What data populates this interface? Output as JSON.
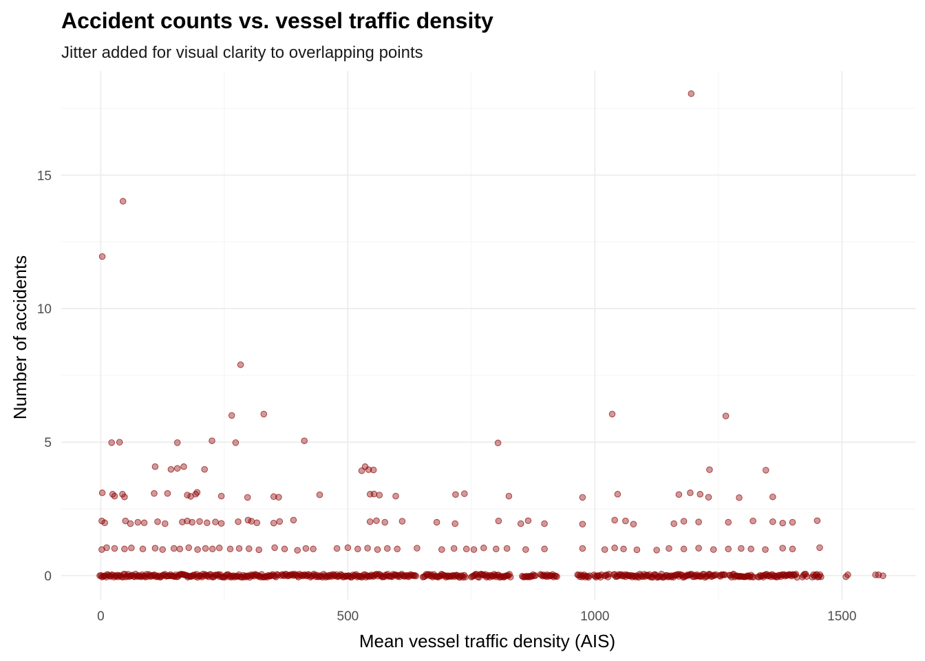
{
  "chart_data": {
    "type": "scatter",
    "title": "Accident counts vs. vessel traffic density",
    "subtitle": "Jitter added for visual clarity to overlapping points",
    "xlabel": "Mean vessel traffic density (AIS)",
    "ylabel": "Number of accidents",
    "xlim": [
      -80,
      1650
    ],
    "ylim": [
      -0.9,
      18.9
    ],
    "xticks": [
      0,
      500,
      1000,
      1500
    ],
    "xtick_labels": [
      "0",
      "500",
      "1000",
      "1500"
    ],
    "yticks": [
      0,
      5,
      10,
      15
    ],
    "ytick_labels": [
      "0",
      "5",
      "10",
      "15"
    ],
    "grid": true,
    "point_color": "#8b0000",
    "point_opacity": 0.4,
    "points": [
      [
        1195,
        18.05
      ],
      [
        45,
        14.02
      ],
      [
        3,
        11.95
      ],
      [
        283,
        7.9
      ],
      [
        1035,
        6.05
      ],
      [
        330,
        6.05
      ],
      [
        265,
        6.0
      ],
      [
        1265,
        5.98
      ],
      [
        225,
        5.05
      ],
      [
        412,
        5.05
      ],
      [
        22,
        4.98
      ],
      [
        38,
        5.0
      ],
      [
        155,
        4.98
      ],
      [
        273,
        4.98
      ],
      [
        804,
        4.97
      ],
      [
        110,
        4.08
      ],
      [
        168,
        4.08
      ],
      [
        155,
        4.02
      ],
      [
        142,
        3.98
      ],
      [
        210,
        3.98
      ],
      [
        535,
        4.08
      ],
      [
        528,
        3.93
      ],
      [
        542,
        3.97
      ],
      [
        552,
        3.96
      ],
      [
        1232,
        3.97
      ],
      [
        1346,
        3.95
      ],
      [
        3,
        3.1
      ],
      [
        24,
        3.05
      ],
      [
        28,
        2.98
      ],
      [
        44,
        3.05
      ],
      [
        48,
        2.95
      ],
      [
        108,
        3.08
      ],
      [
        135,
        3.08
      ],
      [
        175,
        3.02
      ],
      [
        182,
        2.97
      ],
      [
        192,
        3.05
      ],
      [
        195,
        3.12
      ],
      [
        244,
        2.98
      ],
      [
        297,
        2.93
      ],
      [
        350,
        2.96
      ],
      [
        360,
        2.94
      ],
      [
        443,
        3.03
      ],
      [
        545,
        3.05
      ],
      [
        553,
        3.06
      ],
      [
        564,
        3.02
      ],
      [
        597,
        2.98
      ],
      [
        718,
        3.04
      ],
      [
        736,
        3.07
      ],
      [
        826,
        2.98
      ],
      [
        975,
        2.93
      ],
      [
        1046,
        3.05
      ],
      [
        1170,
        3.04
      ],
      [
        1193,
        3.1
      ],
      [
        1213,
        3.05
      ],
      [
        1230,
        2.94
      ],
      [
        1292,
        2.92
      ],
      [
        1360,
        2.95
      ],
      [
        2,
        2.05
      ],
      [
        8,
        1.98
      ],
      [
        50,
        2.05
      ],
      [
        60,
        1.95
      ],
      [
        75,
        2.0
      ],
      [
        88,
        1.98
      ],
      [
        115,
        2.02
      ],
      [
        130,
        1.95
      ],
      [
        165,
        2.01
      ],
      [
        175,
        2.05
      ],
      [
        185,
        2.0
      ],
      [
        200,
        2.03
      ],
      [
        215,
        1.98
      ],
      [
        232,
        2.01
      ],
      [
        244,
        1.96
      ],
      [
        278,
        2.02
      ],
      [
        298,
        2.08
      ],
      [
        305,
        2.04
      ],
      [
        316,
        1.98
      ],
      [
        350,
        1.97
      ],
      [
        362,
        2.03
      ],
      [
        390,
        2.08
      ],
      [
        545,
        2.02
      ],
      [
        558,
        2.06
      ],
      [
        575,
        2.0
      ],
      [
        610,
        2.04
      ],
      [
        680,
        2.0
      ],
      [
        717,
        1.95
      ],
      [
        805,
        2.05
      ],
      [
        850,
        1.95
      ],
      [
        865,
        2.06
      ],
      [
        898,
        1.95
      ],
      [
        975,
        1.93
      ],
      [
        1040,
        2.08
      ],
      [
        1062,
        2.05
      ],
      [
        1078,
        1.93
      ],
      [
        1160,
        1.95
      ],
      [
        1180,
        2.04
      ],
      [
        1210,
        2.01
      ],
      [
        1270,
        2.0
      ],
      [
        1320,
        2.05
      ],
      [
        1360,
        2.02
      ],
      [
        1380,
        1.97
      ],
      [
        1400,
        2.0
      ],
      [
        1450,
        2.06
      ],
      [
        2,
        0.98
      ],
      [
        12,
        1.05
      ],
      [
        28,
        1.02
      ],
      [
        48,
        1.0
      ],
      [
        62,
        1.04
      ],
      [
        85,
        1.0
      ],
      [
        110,
        1.03
      ],
      [
        125,
        0.98
      ],
      [
        148,
        1.02
      ],
      [
        160,
        1.0
      ],
      [
        178,
        1.05
      ],
      [
        196,
        0.98
      ],
      [
        212,
        1.02
      ],
      [
        226,
        1.0
      ],
      [
        240,
        1.04
      ],
      [
        262,
        1.0
      ],
      [
        280,
        1.02
      ],
      [
        300,
        1.01
      ],
      [
        320,
        0.97
      ],
      [
        352,
        1.05
      ],
      [
        372,
        1.0
      ],
      [
        398,
        0.95
      ],
      [
        415,
        1.02
      ],
      [
        430,
        1.0
      ],
      [
        478,
        1.02
      ],
      [
        500,
        1.05
      ],
      [
        520,
        1.0
      ],
      [
        540,
        1.03
      ],
      [
        560,
        0.98
      ],
      [
        580,
        1.02
      ],
      [
        600,
        1.0
      ],
      [
        640,
        1.03
      ],
      [
        690,
        0.98
      ],
      [
        715,
        1.02
      ],
      [
        740,
        1.0
      ],
      [
        755,
        0.98
      ],
      [
        775,
        1.04
      ],
      [
        800,
        1.0
      ],
      [
        822,
        1.02
      ],
      [
        860,
        0.98
      ],
      [
        898,
        1.0
      ],
      [
        975,
        1.02
      ],
      [
        1020,
        0.98
      ],
      [
        1040,
        1.04
      ],
      [
        1058,
        1.0
      ],
      [
        1085,
        0.97
      ],
      [
        1125,
        0.96
      ],
      [
        1150,
        1.02
      ],
      [
        1180,
        1.0
      ],
      [
        1210,
        1.03
      ],
      [
        1240,
        0.98
      ],
      [
        1270,
        1.0
      ],
      [
        1296,
        1.02
      ],
      [
        1316,
        1.0
      ],
      [
        1345,
        0.98
      ],
      [
        1380,
        1.03
      ],
      [
        1400,
        1.0
      ],
      [
        1455,
        1.05
      ]
    ],
    "zero_band": {
      "y": 0,
      "segments": [
        [
          -2,
          360
        ],
        [
          365,
          640
        ],
        [
          652,
          740
        ],
        [
          750,
          830
        ],
        [
          853,
          880
        ],
        [
          890,
          925
        ],
        [
          965,
          990
        ],
        [
          998,
          1015
        ],
        [
          1020,
          1030
        ],
        [
          1038,
          1245
        ],
        [
          1252,
          1265
        ],
        [
          1272,
          1322
        ],
        [
          1330,
          1410
        ],
        [
          1420,
          1430
        ],
        [
          1440,
          1458
        ]
      ],
      "isolated": [
        1508,
        1512,
        1568,
        1574,
        1583
      ]
    }
  }
}
